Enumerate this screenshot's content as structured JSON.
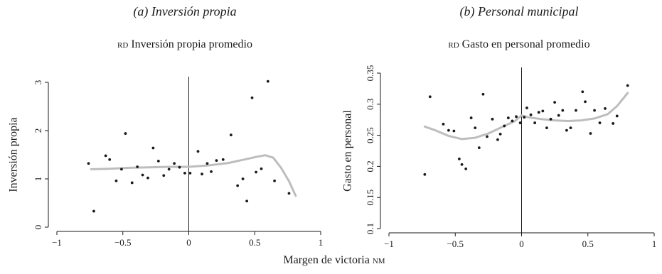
{
  "panels": [
    {
      "title": "(a) Inversión propia",
      "subtitle_prefix": "rd",
      "subtitle_rest": "Inversión propia promedio",
      "chart_data": {
        "type": "scatter",
        "title": "(a) Inversión propia",
        "subtitle": "rd Inversión propia promedio",
        "xlabel": "",
        "ylabel": "Inversión propia",
        "xlim": [
          -1,
          1
        ],
        "ylim": [
          0,
          3
        ],
        "xticks": [
          -1,
          -0.5,
          0,
          0.5,
          1
        ],
        "xtick_labels": [
          "−1",
          "−0.5",
          "0",
          "0.5",
          "1"
        ],
        "yticks": [
          0,
          1,
          2,
          3
        ],
        "ytick_labels": [
          "0",
          "1",
          "2",
          "3"
        ],
        "vline_x": 0,
        "grid": false,
        "points": [
          {
            "x": -0.76,
            "y": 1.32
          },
          {
            "x": -0.72,
            "y": 0.33
          },
          {
            "x": -0.63,
            "y": 1.48
          },
          {
            "x": -0.6,
            "y": 1.4
          },
          {
            "x": -0.55,
            "y": 0.96
          },
          {
            "x": -0.51,
            "y": 1.2
          },
          {
            "x": -0.48,
            "y": 1.94
          },
          {
            "x": -0.43,
            "y": 0.92
          },
          {
            "x": -0.39,
            "y": 1.25
          },
          {
            "x": -0.35,
            "y": 1.08
          },
          {
            "x": -0.31,
            "y": 1.02
          },
          {
            "x": -0.27,
            "y": 1.64
          },
          {
            "x": -0.23,
            "y": 1.37
          },
          {
            "x": -0.19,
            "y": 1.07
          },
          {
            "x": -0.15,
            "y": 1.2
          },
          {
            "x": -0.11,
            "y": 1.32
          },
          {
            "x": -0.07,
            "y": 1.24
          },
          {
            "x": -0.03,
            "y": 1.12
          },
          {
            "x": 0.01,
            "y": 1.12
          },
          {
            "x": 0.07,
            "y": 1.57
          },
          {
            "x": 0.1,
            "y": 1.1
          },
          {
            "x": 0.14,
            "y": 1.32
          },
          {
            "x": 0.17,
            "y": 1.15
          },
          {
            "x": 0.21,
            "y": 1.38
          },
          {
            "x": 0.26,
            "y": 1.4
          },
          {
            "x": 0.32,
            "y": 1.91
          },
          {
            "x": 0.37,
            "y": 0.86
          },
          {
            "x": 0.41,
            "y": 1.0
          },
          {
            "x": 0.44,
            "y": 0.54
          },
          {
            "x": 0.48,
            "y": 2.68
          },
          {
            "x": 0.51,
            "y": 1.14
          },
          {
            "x": 0.55,
            "y": 1.21
          },
          {
            "x": 0.6,
            "y": 3.02
          },
          {
            "x": 0.65,
            "y": 0.96
          },
          {
            "x": 0.76,
            "y": 0.7
          }
        ],
        "fit_line": [
          {
            "x": -0.74,
            "y": 1.2
          },
          {
            "x": -0.6,
            "y": 1.21
          },
          {
            "x": -0.45,
            "y": 1.23
          },
          {
            "x": -0.3,
            "y": 1.24
          },
          {
            "x": -0.15,
            "y": 1.25
          },
          {
            "x": 0.0,
            "y": 1.25
          },
          {
            "x": 0.15,
            "y": 1.28
          },
          {
            "x": 0.3,
            "y": 1.33
          },
          {
            "x": 0.42,
            "y": 1.4
          },
          {
            "x": 0.52,
            "y": 1.46
          },
          {
            "x": 0.58,
            "y": 1.49
          },
          {
            "x": 0.64,
            "y": 1.44
          },
          {
            "x": 0.7,
            "y": 1.23
          },
          {
            "x": 0.76,
            "y": 0.95
          },
          {
            "x": 0.81,
            "y": 0.65
          }
        ],
        "colors": {
          "points": "#1a1a1a",
          "fit": "#bdbdbd",
          "axis": "#1a1a1a"
        }
      }
    },
    {
      "title": "(b) Personal municipal",
      "subtitle_prefix": "rd",
      "subtitle_rest": "Gasto en personal promedio",
      "chart_data": {
        "type": "scatter",
        "title": "(b) Personal municipal",
        "subtitle": "rd Gasto en personal promedio",
        "xlabel": "",
        "ylabel": "Gasto en personal",
        "xlim": [
          -1,
          1
        ],
        "ylim": [
          0.1,
          0.35
        ],
        "xticks": [
          -1,
          -0.5,
          0,
          0.5,
          1
        ],
        "xtick_labels": [
          "−1",
          "−0.5",
          "0",
          "0.5",
          "1"
        ],
        "yticks": [
          0.1,
          0.15,
          0.2,
          0.25,
          0.3,
          0.35
        ],
        "ytick_labels": [
          "0.1",
          "0.15",
          "0.2",
          "0.25",
          "0.3",
          "0.35"
        ],
        "vline_x": 0,
        "grid": false,
        "points": [
          {
            "x": -0.73,
            "y": 0.187
          },
          {
            "x": -0.69,
            "y": 0.312
          },
          {
            "x": -0.59,
            "y": 0.268
          },
          {
            "x": -0.55,
            "y": 0.258
          },
          {
            "x": -0.51,
            "y": 0.257
          },
          {
            "x": -0.47,
            "y": 0.212
          },
          {
            "x": -0.45,
            "y": 0.203
          },
          {
            "x": -0.42,
            "y": 0.196
          },
          {
            "x": -0.38,
            "y": 0.278
          },
          {
            "x": -0.35,
            "y": 0.262
          },
          {
            "x": -0.32,
            "y": 0.23
          },
          {
            "x": -0.29,
            "y": 0.316
          },
          {
            "x": -0.26,
            "y": 0.248
          },
          {
            "x": -0.22,
            "y": 0.276
          },
          {
            "x": -0.18,
            "y": 0.243
          },
          {
            "x": -0.16,
            "y": 0.252
          },
          {
            "x": -0.13,
            "y": 0.265
          },
          {
            "x": -0.1,
            "y": 0.278
          },
          {
            "x": -0.07,
            "y": 0.273
          },
          {
            "x": -0.04,
            "y": 0.28
          },
          {
            "x": -0.01,
            "y": 0.27
          },
          {
            "x": 0.02,
            "y": 0.279
          },
          {
            "x": 0.04,
            "y": 0.294
          },
          {
            "x": 0.07,
            "y": 0.283
          },
          {
            "x": 0.1,
            "y": 0.27
          },
          {
            "x": 0.13,
            "y": 0.287
          },
          {
            "x": 0.16,
            "y": 0.289
          },
          {
            "x": 0.19,
            "y": 0.262
          },
          {
            "x": 0.22,
            "y": 0.276
          },
          {
            "x": 0.25,
            "y": 0.303
          },
          {
            "x": 0.28,
            "y": 0.282
          },
          {
            "x": 0.31,
            "y": 0.29
          },
          {
            "x": 0.34,
            "y": 0.258
          },
          {
            "x": 0.37,
            "y": 0.262
          },
          {
            "x": 0.41,
            "y": 0.29
          },
          {
            "x": 0.46,
            "y": 0.32
          },
          {
            "x": 0.48,
            "y": 0.304
          },
          {
            "x": 0.52,
            "y": 0.253
          },
          {
            "x": 0.55,
            "y": 0.29
          },
          {
            "x": 0.59,
            "y": 0.27
          },
          {
            "x": 0.63,
            "y": 0.293
          },
          {
            "x": 0.69,
            "y": 0.269
          },
          {
            "x": 0.72,
            "y": 0.281
          },
          {
            "x": 0.8,
            "y": 0.33
          }
        ],
        "fit_line": [
          {
            "x": -0.73,
            "y": 0.264
          },
          {
            "x": -0.65,
            "y": 0.258
          },
          {
            "x": -0.55,
            "y": 0.249
          },
          {
            "x": -0.45,
            "y": 0.244
          },
          {
            "x": -0.35,
            "y": 0.246
          },
          {
            "x": -0.25,
            "y": 0.253
          },
          {
            "x": -0.15,
            "y": 0.263
          },
          {
            "x": -0.05,
            "y": 0.273
          },
          {
            "x": 0.0,
            "y": 0.282
          },
          {
            "x": 0.05,
            "y": 0.279
          },
          {
            "x": 0.15,
            "y": 0.276
          },
          {
            "x": 0.25,
            "y": 0.274
          },
          {
            "x": 0.35,
            "y": 0.273
          },
          {
            "x": 0.45,
            "y": 0.274
          },
          {
            "x": 0.55,
            "y": 0.277
          },
          {
            "x": 0.65,
            "y": 0.284
          },
          {
            "x": 0.72,
            "y": 0.297
          },
          {
            "x": 0.8,
            "y": 0.318
          }
        ],
        "colors": {
          "points": "#1a1a1a",
          "fit": "#bdbdbd",
          "axis": "#1a1a1a"
        }
      }
    }
  ],
  "shared_xlabel_prefix": "Margen de victoria",
  "shared_xlabel_suffix": "nm"
}
